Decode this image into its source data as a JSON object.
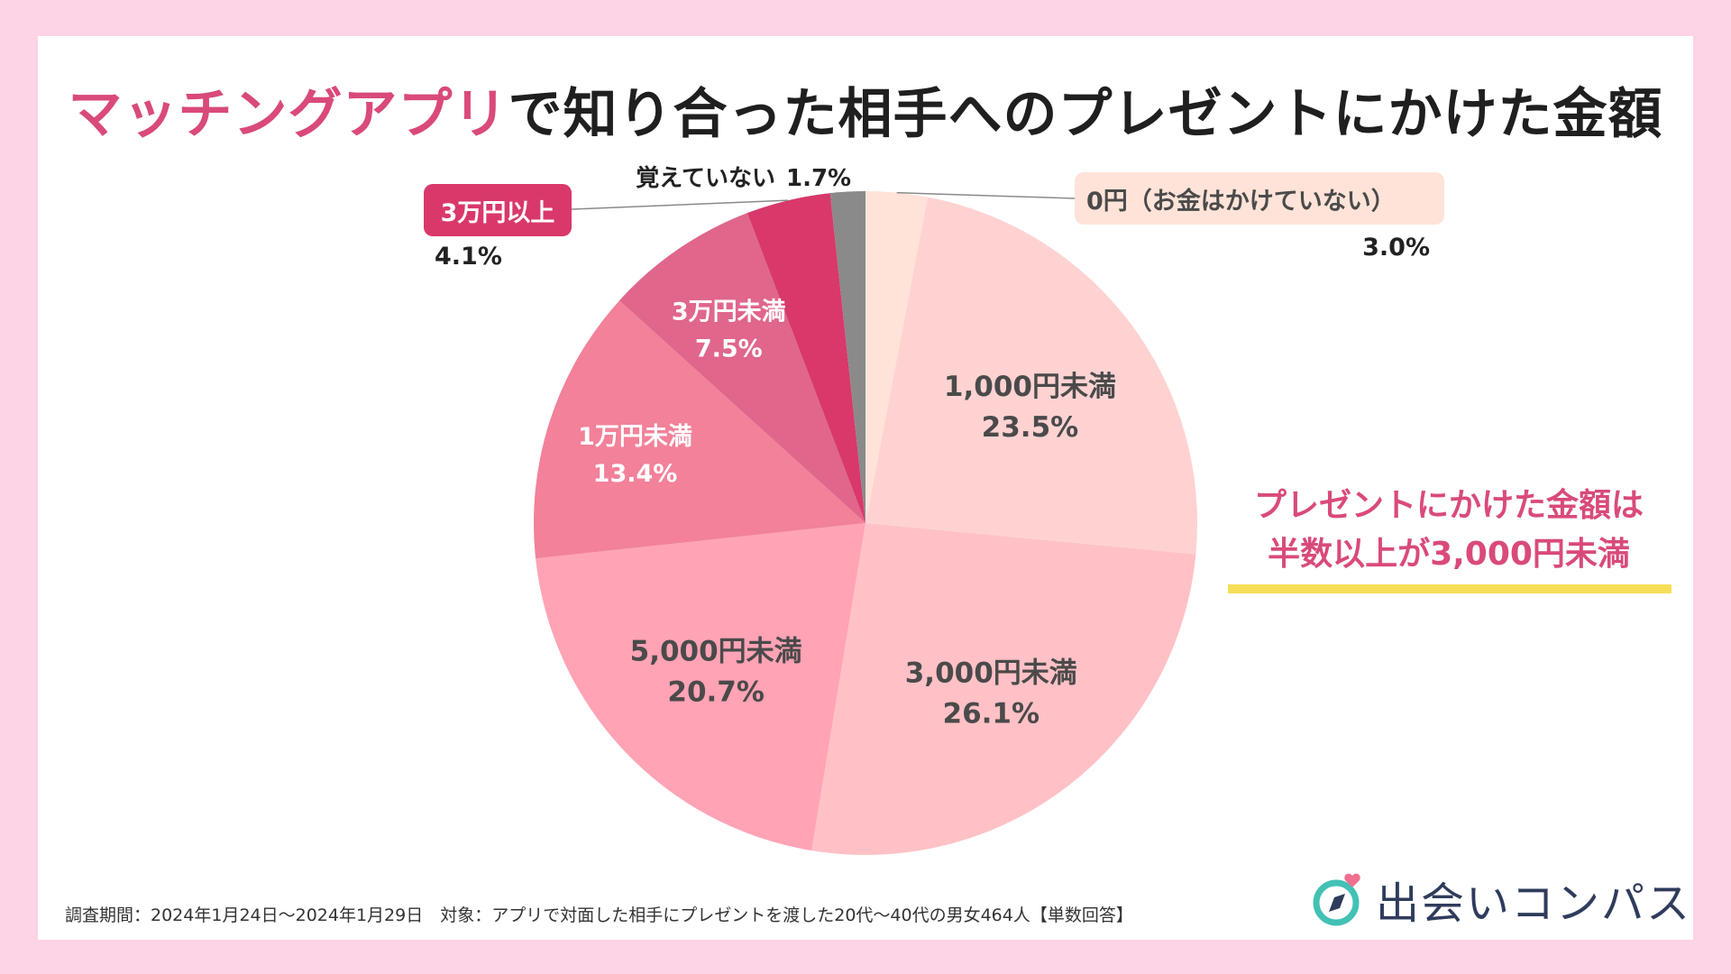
{
  "title_accent": "マッチングアプリ",
  "title_rest": "で知り合った相手へのプレゼントにかけた金額",
  "chart_data": {
    "type": "pie",
    "title": "マッチングアプリで知り合った相手へのプレゼントにかけた金額",
    "start": "top, clockwise",
    "slices": [
      {
        "label": "0円（お金はかけていない）",
        "value": 3.0,
        "value_text": "3.0%",
        "color": "#ffe3d8",
        "label_style": "outside-right"
      },
      {
        "label": "1,000円未満",
        "value": 23.5,
        "value_text": "23.5%",
        "color": "#ffd2d2",
        "label_style": "inside"
      },
      {
        "label": "3,000円未満",
        "value": 26.1,
        "value_text": "26.1%",
        "color": "#ffc1c6",
        "label_style": "inside"
      },
      {
        "label": "5,000円未満",
        "value": 20.7,
        "value_text": "20.7%",
        "color": "#ffa3b5",
        "label_style": "inside"
      },
      {
        "label": "1万円未満",
        "value": 13.4,
        "value_text": "13.4%",
        "color": "#f28199",
        "label_style": "inside-white"
      },
      {
        "label": "3万円未満",
        "value": 7.5,
        "value_text": "7.5%",
        "color": "#e0668c",
        "label_style": "inside-white"
      },
      {
        "label": "3万円以上",
        "value": 4.1,
        "value_text": "4.1%",
        "color": "#d9386a",
        "label_style": "outside-left"
      },
      {
        "label": "覚えていない",
        "value": 1.7,
        "value_text": "1.7%",
        "color": "#8a8a8a",
        "label_style": "outside-top"
      }
    ]
  },
  "note": {
    "line1": "プレゼントにかけた金額は",
    "line2": "半数以上が3,000円未満"
  },
  "footer": "調査期間：2024年1月24日〜2024年1月29日　対象：アプリで対面した相手にプレゼントを渡した20代〜40代の男女464人【単数回答】",
  "brand": {
    "name": "出会いコンパス",
    "colors": {
      "teal": "#43c1b4",
      "navy": "#2f3c5c",
      "pink": "#ef6f8f"
    }
  },
  "colors": {
    "background": "#fdd3e6",
    "accent": "#d94a7a",
    "highlight": "#f7de57"
  }
}
